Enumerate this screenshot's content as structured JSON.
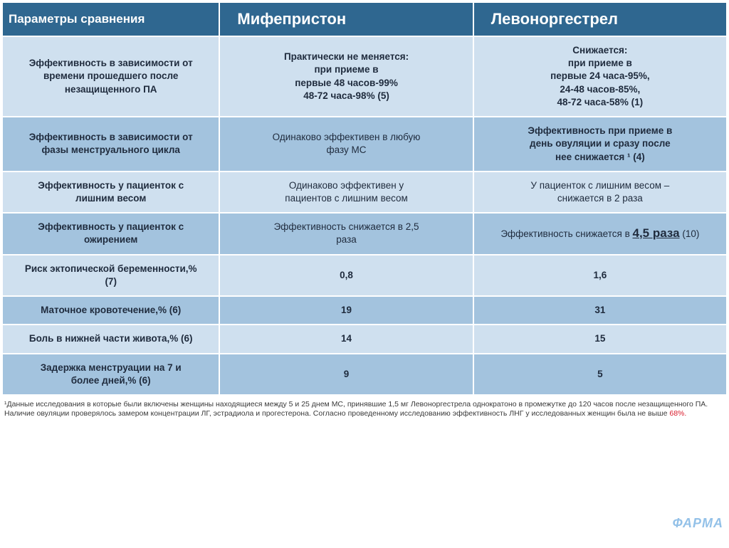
{
  "colors": {
    "header_bg": "#2f6790",
    "header_fg": "#ffffff",
    "row_light": "#cfe0ef",
    "row_dark": "#a3c3de",
    "red": "#d91a2a"
  },
  "header": {
    "param": "Параметры сравнения",
    "col_a": "Мифепристон",
    "col_b": "Левоноргестрел"
  },
  "rows": [
    {
      "param": [
        "Эффективность в зависимости от",
        "времени прошедшего после",
        "незащищенного  ПА"
      ],
      "a": [
        "Практически не меняется:",
        "при приеме в",
        "первые 48 часов-99%",
        "48-72 часа-98% (5)"
      ],
      "b": [
        "Снижается:",
        "при приеме в",
        "первые 24 часа-95%,",
        "24-48 часов-85%,",
        "48-72 часа-58% (1)"
      ],
      "bold_all": true
    },
    {
      "param": [
        "Эффективность в зависимости от",
        "фазы менструального цикла"
      ],
      "a": [
        "Одинаково эффективен в любую",
        "фазу МС"
      ],
      "b_emph": [
        "Эффективность при приеме в",
        "день овуляции и сразу после",
        "нее снижается ¹ (4)"
      ]
    },
    {
      "param": [
        "Эффективность у пациенток с",
        "лишним весом"
      ],
      "a": [
        "Одинаково эффективен у",
        "пациентов с лишним  весом"
      ],
      "b": [
        "У пациенток с лишним весом –",
        "снижается в 2 раза"
      ]
    },
    {
      "param": [
        "Эффективность у пациенток с",
        "ожирением"
      ],
      "a": [
        "Эффективность снижается в 2,5",
        "раза"
      ],
      "b_under": {
        "pre": "Эффективность снижается в ",
        "u": "4,5 раза",
        "post": " (10)"
      }
    },
    {
      "param": [
        "Риск эктопической беременности,%",
        "(7)"
      ],
      "a_num": "0,8",
      "b_num": "1,6"
    },
    {
      "param": [
        "Маточное кровотечение,% (6)"
      ],
      "a_num": "19",
      "b_num": "31"
    },
    {
      "param": [
        "Боль в нижней части живота,% (6)"
      ],
      "a_num": "14",
      "b_num": "15"
    },
    {
      "param": [
        "Задержка менструации на 7 и",
        "более дней,% (6)"
      ],
      "a_num": "9",
      "b_num": "5"
    }
  ],
  "footnote": {
    "pre": "¹Данные исследования в которые были включены женщины находящиеся между 5 и 25 днем МС, принявшие 1,5 мг Левоноргестрела  однократоно в промежутке до 120 часов после незащищенного ПА.  Наличие овуляции проверялось замером концентрации ЛГ, эстрадиола и прогестерона. Согласно проведенному исследованию  эффективность ЛНГ  у исследованных женщин была не выше ",
    "hl": "68%.",
    "post": ""
  },
  "logo_text": "ФАРМА"
}
